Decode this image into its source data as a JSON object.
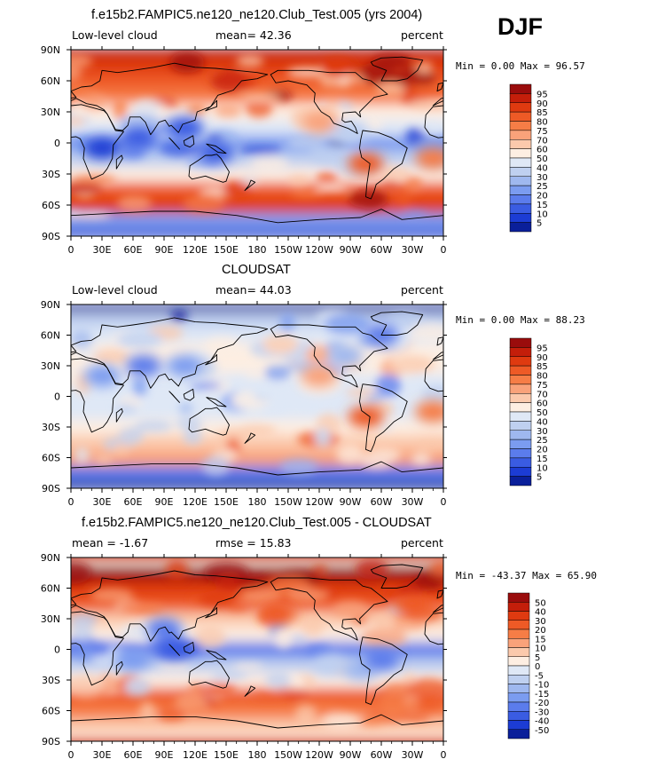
{
  "season": "DJF",
  "chart_data": [
    {
      "type": "heatmap",
      "title": "f.e15b2.FAMPIC5.ne120_ne120.Club_Test.005 (yrs 2004)",
      "left_label": "Low-level cloud",
      "center_label": "mean=  42.36",
      "right_label": "percent",
      "stats": "Min =   0.00 Max =  96.57",
      "xticks": [
        "0",
        "30E",
        "60E",
        "90E",
        "120E",
        "150E",
        "180",
        "150W",
        "120W",
        "90W",
        "60W",
        "30W",
        "0"
      ],
      "yticks": [
        "90N",
        "60N",
        "30N",
        "0",
        "30S",
        "60S",
        "90S"
      ],
      "xlim": [
        0,
        360
      ],
      "ylim": [
        -90,
        90
      ],
      "colorbar": {
        "labels": [
          "95",
          "90",
          "85",
          "80",
          "75",
          "70",
          "60",
          "50",
          "40",
          "30",
          "25",
          "20",
          "15",
          "10",
          "5"
        ],
        "colors": [
          "#9a0c0c",
          "#c41e0a",
          "#df3a10",
          "#ee5a26",
          "#f67d46",
          "#f9a27a",
          "#fbc9ac",
          "#fdeee2",
          "#dfe8f6",
          "#bfd0f0",
          "#9fb8ef",
          "#7b9cf0",
          "#5b7cec",
          "#3a5ce2",
          "#1c3cd4",
          "#0a1f9a"
        ]
      },
      "zonal_profile": [
        [
          "90S",
          5
        ],
        [
          "75S",
          20
        ],
        [
          "60S",
          85
        ],
        [
          "45S",
          80
        ],
        [
          "30S",
          55
        ],
        [
          "15S",
          30
        ],
        [
          "0",
          20
        ],
        [
          "15N",
          40
        ],
        [
          "30N",
          55
        ],
        [
          "45N",
          75
        ],
        [
          "60N",
          80
        ],
        [
          "75N",
          85
        ],
        [
          "90N",
          90
        ]
      ]
    },
    {
      "type": "heatmap",
      "title": "CLOUDSAT",
      "left_label": "Low-level cloud",
      "center_label": "mean=  44.03",
      "right_label": "percent",
      "stats": "Min =   0.00 Max =  88.23",
      "xticks": [
        "0",
        "30E",
        "60E",
        "90E",
        "120E",
        "150E",
        "180",
        "150W",
        "120W",
        "90W",
        "60W",
        "30W",
        "0"
      ],
      "yticks": [
        "90N",
        "60N",
        "30N",
        "0",
        "30S",
        "60S",
        "90S"
      ],
      "xlim": [
        0,
        360
      ],
      "ylim": [
        -90,
        90
      ],
      "colorbar": {
        "labels": [
          "95",
          "90",
          "85",
          "80",
          "75",
          "70",
          "60",
          "50",
          "40",
          "30",
          "25",
          "20",
          "15",
          "10",
          "5"
        ],
        "colors": [
          "#9a0c0c",
          "#c41e0a",
          "#df3a10",
          "#ee5a26",
          "#f67d46",
          "#f9a27a",
          "#fbc9ac",
          "#fdeee2",
          "#dfe8f6",
          "#bfd0f0",
          "#9fb8ef",
          "#7b9cf0",
          "#5b7cec",
          "#3a5ce2",
          "#1c3cd4",
          "#0a1f9a"
        ]
      },
      "zonal_profile": [
        [
          "90S",
          0
        ],
        [
          "75S",
          15
        ],
        [
          "60S",
          70
        ],
        [
          "45S",
          60
        ],
        [
          "30S",
          55
        ],
        [
          "15S",
          40
        ],
        [
          "0",
          45
        ],
        [
          "15N",
          40
        ],
        [
          "30N",
          50
        ],
        [
          "45N",
          55
        ],
        [
          "60N",
          45
        ],
        [
          "75N",
          30
        ],
        [
          "90N",
          0
        ]
      ]
    },
    {
      "type": "heatmap",
      "title": "f.e15b2.FAMPIC5.ne120_ne120.Club_Test.005 - CLOUDSAT",
      "left_label": "mean =  -1.67",
      "center_label": "rmse =  15.83",
      "right_label": "percent",
      "stats": "Min = -43.37 Max =  65.90",
      "xticks": [
        "0",
        "30E",
        "60E",
        "90E",
        "120E",
        "150E",
        "180",
        "150W",
        "120W",
        "90W",
        "60W",
        "30W",
        "0"
      ],
      "yticks": [
        "90N",
        "60N",
        "30N",
        "0",
        "30S",
        "60S",
        "90S"
      ],
      "xlim": [
        0,
        360
      ],
      "ylim": [
        -90,
        90
      ],
      "colorbar": {
        "labels": [
          "50",
          "40",
          "30",
          "20",
          "15",
          "10",
          "5",
          "0",
          "-5",
          "-10",
          "-15",
          "-20",
          "-30",
          "-40",
          "-50"
        ],
        "colors": [
          "#9a0c0c",
          "#c41e0a",
          "#df3a10",
          "#ee5a26",
          "#f67d46",
          "#f9a27a",
          "#fbc9ac",
          "#fdeee2",
          "#dfe8f6",
          "#bfd0f0",
          "#9fb8ef",
          "#7b9cf0",
          "#5b7cec",
          "#3a5ce2",
          "#1c3cd4",
          "#0a1f9a"
        ]
      },
      "zonal_profile": [
        [
          "90S",
          0
        ],
        [
          "75S",
          5
        ],
        [
          "60S",
          15
        ],
        [
          "45S",
          20
        ],
        [
          "30S",
          0
        ],
        [
          "15S",
          -10
        ],
        [
          "0",
          -25
        ],
        [
          "15N",
          0
        ],
        [
          "30N",
          5
        ],
        [
          "45N",
          20
        ],
        [
          "60N",
          35
        ],
        [
          "75N",
          55
        ],
        [
          "90N",
          0
        ]
      ]
    }
  ]
}
